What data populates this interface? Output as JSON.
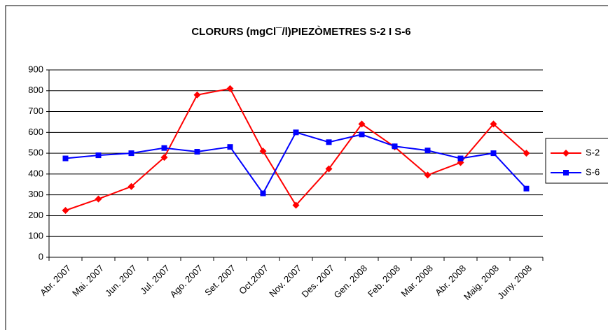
{
  "chart_data": {
    "type": "line",
    "title": "CLORURS (mgCl¯/l)PIEZÒMETRES S-2 I S-6",
    "categories": [
      "Abr. 2007",
      "Mai. 2007",
      "Jun. 2007",
      "Jul. 2007",
      "Ago. 2007",
      "Set. 2007",
      "Oct.2007",
      "Nov. 2007",
      "Des. 2007",
      "Gen. 2008",
      "Feb. 2008",
      "Mar. 2008",
      "Abr. 2008",
      "Maig. 2008",
      "Juny. 2008"
    ],
    "series": [
      {
        "name": "S-2",
        "color": "#ff0000",
        "marker": "diamond",
        "values": [
          225,
          280,
          340,
          480,
          780,
          810,
          510,
          250,
          425,
          640,
          530,
          395,
          455,
          640,
          500
        ]
      },
      {
        "name": "S-6",
        "color": "#0000ff",
        "marker": "square",
        "values": [
          475,
          490,
          500,
          525,
          507,
          530,
          307,
          600,
          553,
          590,
          533,
          513,
          475,
          500,
          330
        ]
      }
    ],
    "ylim": [
      0,
      900
    ],
    "yticks": [
      0,
      100,
      200,
      300,
      400,
      500,
      600,
      700,
      800,
      900
    ],
    "grid": true,
    "legend": "right"
  }
}
